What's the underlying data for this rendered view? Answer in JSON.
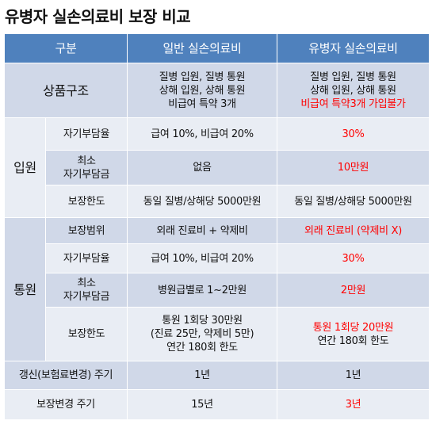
{
  "title": "유병자 실손의료비 보장 비교",
  "header": {
    "col1": "구분",
    "col2": "일반 실손의료비",
    "col3": "유병자 실손의료비"
  },
  "product": {
    "label": "상품구조",
    "general": [
      "질병 입원, 질병 통원",
      "상해 입원, 상해 통원",
      "비급여 특약 3개"
    ],
    "sick": [
      "질병 입원, 질병 통원",
      "상해 입원, 상해 통원"
    ],
    "sick_red": "비급여 특약3개 가입불가"
  },
  "inpatient": {
    "group": "입원",
    "rows": [
      {
        "label": "자기부담율",
        "general": "급여 10%, 비급여 20%",
        "sick": "30%"
      },
      {
        "label_lines": [
          "최소",
          "자기부담금"
        ],
        "general": "없음",
        "sick": "10만원"
      },
      {
        "label": "보장한도",
        "general": "동일 질병/상해당 5000만원",
        "sick": "동일 질병/상해당 5000만원"
      }
    ]
  },
  "outpatient": {
    "group": "통원",
    "rows": [
      {
        "label": "보장범위",
        "general": "외래 진료비 + 약제비",
        "sick": "외래 진료비 (약제비 X)"
      },
      {
        "label": "자기부담율",
        "general": "급여 10%, 비급여 20%",
        "sick": "30%"
      },
      {
        "label_lines": [
          "최소",
          "자기부담금"
        ],
        "general": "병원급별로 1~2만원",
        "sick": "2만원"
      },
      {
        "label": "보장한도",
        "general_lines": [
          "통원 1회당 30만원",
          "(진료 25만, 약제비 5만)",
          "연간 180회 한도"
        ],
        "sick_red": "통원 1회당 20만원",
        "sick_black": "연간 180회 한도"
      }
    ]
  },
  "renewal": {
    "label": "갱신(보험료변경) 주기",
    "general": "1년",
    "sick": "1년"
  },
  "change": {
    "label": "보장변경 주기",
    "general": "15년",
    "sick": "3년"
  }
}
